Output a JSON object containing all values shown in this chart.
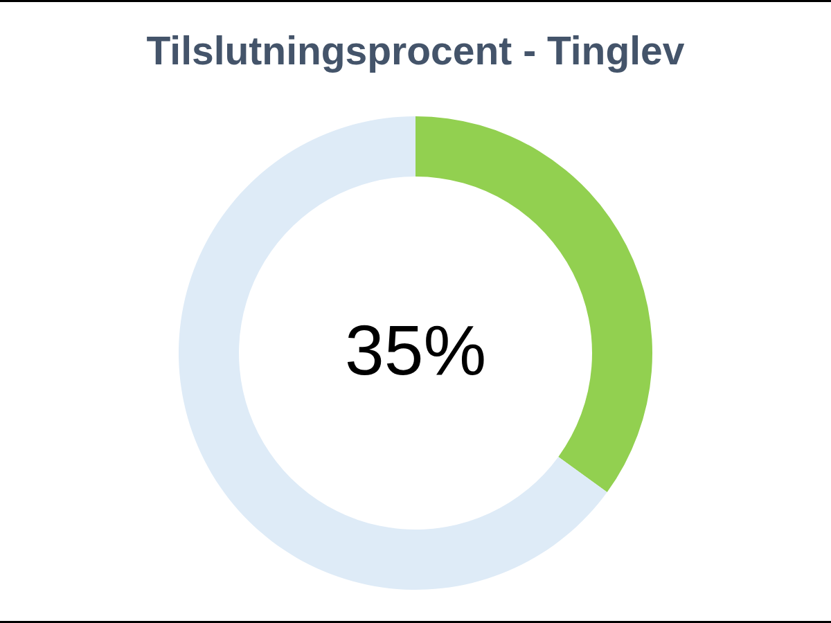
{
  "chart_data": {
    "type": "donut",
    "title": "Tilslutningsprocent - Tinglev",
    "categories": [
      null,
      null
    ],
    "values": [
      35,
      65
    ],
    "colors": [
      "#92d050",
      "#deebf7"
    ],
    "annotations": [
      "35%"
    ]
  }
}
